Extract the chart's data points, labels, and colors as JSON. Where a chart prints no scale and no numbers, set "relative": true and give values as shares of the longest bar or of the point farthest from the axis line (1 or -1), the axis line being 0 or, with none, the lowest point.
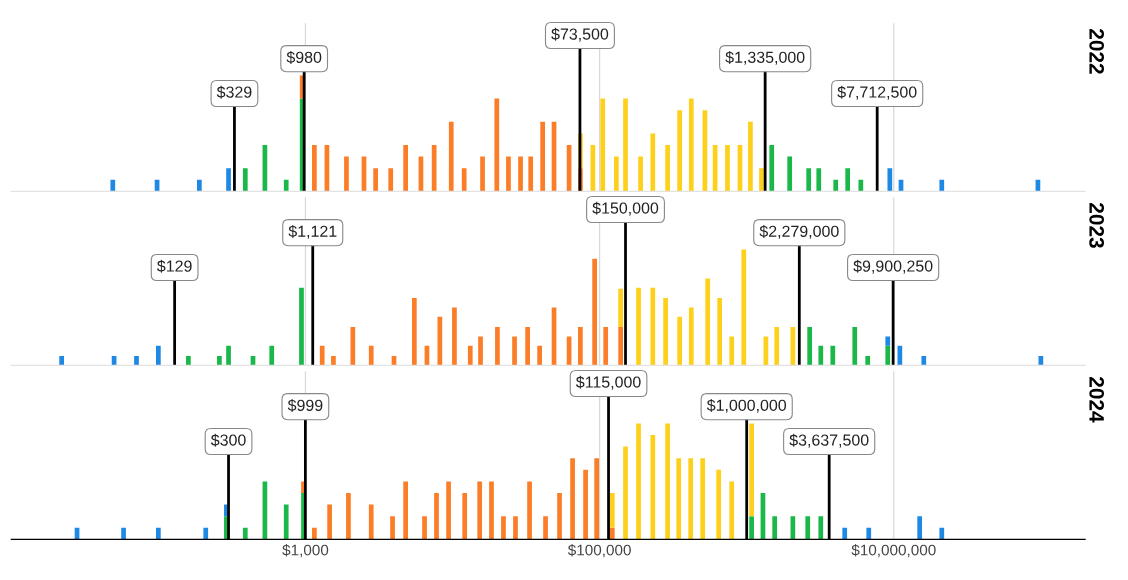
{
  "chart_data": [
    {
      "type": "bar",
      "title": "2022",
      "relative": true,
      "stacked": true,
      "log": "x",
      "grid": "x",
      "tick_labels": false,
      "xlim": [
        10,
        200000000
      ],
      "xticks": [
        {
          "value": 1000,
          "label": null
        },
        {
          "value": 100000,
          "label": null
        },
        {
          "value": 10000000,
          "label": null
        }
      ],
      "x": [
        49,
        98,
        190,
        300,
        390,
        530,
        740,
        950,
        1150,
        1400,
        1900,
        2500,
        3000,
        3800,
        4800,
        6100,
        7500,
        9800,
        12000,
        16000,
        20000,
        24000,
        29000,
        34000,
        41000,
        49000,
        62000,
        74000,
        90000,
        105000,
        130000,
        150000,
        190000,
        230000,
        290000,
        350000,
        420000,
        520000,
        610000,
        740000,
        900000,
        1060000,
        1260000,
        1480000,
        1960000,
        2640000,
        3090000,
        4030000,
        4860000,
        5970000,
        9400000,
        11200000,
        21200000,
        95500000
      ],
      "series": [
        {
          "color": "#19b849",
          "values": [
            null,
            null,
            null,
            null,
            0.2,
            0.4,
            0.1,
            0.8,
            null,
            null,
            null,
            null,
            null,
            null,
            null,
            null,
            null,
            null,
            null,
            null,
            null,
            null,
            null,
            null,
            null,
            null,
            null,
            null,
            null,
            null,
            null,
            null,
            null,
            null,
            null,
            null,
            null,
            null,
            null,
            null,
            null,
            null,
            null,
            0.4,
            0.3,
            0.2,
            0.2,
            0.1,
            0.2,
            0.1,
            null,
            null,
            null,
            null
          ]
        },
        {
          "color": "#fb7d28",
          "values": [
            null,
            null,
            null,
            null,
            null,
            null,
            null,
            0.2,
            0.4,
            0.4,
            0.3,
            0.3,
            0.2,
            0.2,
            0.4,
            0.3,
            0.4,
            0.6,
            0.2,
            0.3,
            0.8,
            0.3,
            0.3,
            0.3,
            0.6,
            0.6,
            0.4,
            0.2,
            null,
            null,
            null,
            null,
            null,
            null,
            null,
            null,
            null,
            null,
            null,
            null,
            null,
            null,
            null,
            null,
            null,
            null,
            null,
            null,
            null,
            null,
            null,
            null,
            null,
            null
          ]
        },
        {
          "color": "#fdd01c",
          "values": [
            null,
            null,
            null,
            null,
            null,
            null,
            null,
            null,
            null,
            null,
            null,
            null,
            null,
            null,
            null,
            null,
            null,
            null,
            null,
            null,
            null,
            null,
            null,
            null,
            null,
            null,
            null,
            0.3,
            0.4,
            0.8,
            0.3,
            0.8,
            0.3,
            0.5,
            0.4,
            0.7,
            0.8,
            0.7,
            0.4,
            0.4,
            0.4,
            0.6,
            0.2,
            null,
            null,
            null,
            null,
            null,
            null,
            null,
            null,
            null,
            null,
            null
          ]
        },
        {
          "color": "#1e88e5",
          "values": [
            0.1,
            0.1,
            0.1,
            0.2,
            null,
            null,
            null,
            null,
            null,
            null,
            null,
            null,
            null,
            null,
            null,
            null,
            null,
            null,
            null,
            null,
            null,
            null,
            null,
            null,
            null,
            null,
            null,
            null,
            null,
            null,
            null,
            null,
            null,
            null,
            null,
            null,
            null,
            null,
            null,
            null,
            null,
            null,
            null,
            null,
            null,
            null,
            null,
            null,
            null,
            null,
            0.2,
            0.1,
            0.1,
            0.1
          ]
        }
      ],
      "ref_lines": [
        {
          "axis": "x",
          "value": 329,
          "label": "$329",
          "color": "#000000"
        },
        {
          "axis": "x",
          "value": 980,
          "label": "$980",
          "color": "#000000"
        },
        {
          "axis": "x",
          "value": 73500,
          "label": "$73,500",
          "color": "#000000"
        },
        {
          "axis": "x",
          "value": 1335000,
          "label": "$1,335,000",
          "color": "#000000"
        },
        {
          "axis": "x",
          "value": 7712500,
          "label": "$7,712,500",
          "color": "#000000"
        }
      ]
    },
    {
      "type": "bar",
      "title": "2023",
      "relative": true,
      "stacked": true,
      "log": "x",
      "grid": "x",
      "tick_labels": false,
      "xlim": [
        10,
        200000000
      ],
      "xticks": [
        {
          "value": 1000,
          "label": null
        },
        {
          "value": 100000,
          "label": null
        },
        {
          "value": 10000000,
          "label": null
        }
      ],
      "x": [
        22,
        50,
        71,
        100,
        160,
        260,
        300,
        440,
        590,
        940,
        1300,
        1550,
        2100,
        2800,
        4000,
        5500,
        6700,
        8200,
        10300,
        13200,
        15500,
        20200,
        26400,
        32400,
        39100,
        49000,
        62000,
        74000,
        92500,
        110000,
        139000,
        184000,
        230000,
        281000,
        350000,
        420000,
        543000,
        655000,
        791000,
        955000,
        1350000,
        1600000,
        2060000,
        2680000,
        3190000,
        3850000,
        5430000,
        6650000,
        9100000,
        11000000,
        16000000,
        100000000
      ],
      "series": [
        {
          "color": "#19b849",
          "values": [
            null,
            null,
            null,
            null,
            0.08,
            0.08,
            0.17,
            0.08,
            0.17,
            0.67,
            null,
            null,
            null,
            null,
            null,
            null,
            null,
            null,
            null,
            null,
            null,
            null,
            null,
            null,
            null,
            null,
            null,
            null,
            null,
            null,
            null,
            null,
            null,
            null,
            null,
            null,
            null,
            null,
            null,
            null,
            null,
            null,
            null,
            0.33,
            0.17,
            0.17,
            0.33,
            0.08,
            0.17,
            null,
            null,
            null
          ]
        },
        {
          "color": "#fb7d28",
          "values": [
            null,
            null,
            null,
            null,
            null,
            null,
            null,
            null,
            null,
            null,
            0.17,
            0.08,
            0.33,
            0.17,
            0.08,
            0.58,
            0.17,
            0.42,
            0.5,
            0.17,
            0.25,
            0.33,
            0.25,
            0.33,
            0.17,
            0.5,
            0.25,
            0.33,
            0.92,
            0.33,
            0.33,
            null,
            null,
            null,
            null,
            null,
            null,
            null,
            null,
            null,
            null,
            null,
            null,
            null,
            null,
            null,
            null,
            null,
            null,
            null,
            null,
            null
          ]
        },
        {
          "color": "#fdd01c",
          "values": [
            null,
            null,
            null,
            null,
            null,
            null,
            null,
            null,
            null,
            null,
            null,
            null,
            null,
            null,
            null,
            null,
            null,
            null,
            null,
            null,
            null,
            null,
            null,
            null,
            null,
            null,
            null,
            null,
            null,
            null,
            0.33,
            0.67,
            0.67,
            0.58,
            0.42,
            0.5,
            0.75,
            0.58,
            0.25,
            1,
            0.25,
            0.33,
            0.33,
            null,
            null,
            null,
            null,
            null,
            null,
            null,
            null,
            null
          ]
        },
        {
          "color": "#1e88e5",
          "values": [
            0.08,
            0.08,
            0.08,
            0.17,
            null,
            null,
            null,
            null,
            null,
            null,
            null,
            null,
            null,
            null,
            null,
            null,
            null,
            null,
            null,
            null,
            null,
            null,
            null,
            null,
            null,
            null,
            null,
            null,
            null,
            null,
            null,
            null,
            null,
            null,
            null,
            null,
            null,
            null,
            null,
            null,
            null,
            null,
            null,
            null,
            null,
            null,
            null,
            null,
            0.08,
            0.17,
            0.08,
            0.08
          ]
        }
      ],
      "ref_lines": [
        {
          "axis": "x",
          "value": 129,
          "label": "$129",
          "color": "#000000"
        },
        {
          "axis": "x",
          "value": 1121,
          "label": "$1,121",
          "color": "#000000"
        },
        {
          "axis": "x",
          "value": 150000,
          "label": "$150,000",
          "color": "#000000"
        },
        {
          "axis": "x",
          "value": 2279000,
          "label": "$2,279,000",
          "color": "#000000"
        },
        {
          "axis": "x",
          "value": 9900250,
          "label": "$9,900,250",
          "color": "#000000"
        }
      ]
    },
    {
      "type": "bar",
      "title": "2024",
      "relative": true,
      "stacked": true,
      "log": "x",
      "grid": "x",
      "tick_labels": "x",
      "xlim": [
        10,
        200000000
      ],
      "xticks": [
        {
          "value": 1000,
          "label": "$1,000"
        },
        {
          "value": 100000,
          "label": "$100,000"
        },
        {
          "value": 10000000,
          "label": "$10,000,000"
        }
      ],
      "x": [
        28,
        58,
        100,
        210,
        290,
        390,
        530,
        740,
        970,
        1150,
        1460,
        1960,
        2800,
        3910,
        4800,
        6450,
        7780,
        9400,
        12100,
        15300,
        18400,
        22200,
        26800,
        33400,
        42900,
        53400,
        65500,
        80300,
        95500,
        122000,
        150000,
        184000,
        230000,
        290000,
        345000,
        416000,
        502000,
        645000,
        791000,
        1080000,
        1290000,
        1550000,
        2060000,
        2600000,
        3190000,
        4640000,
        6760000,
        15000000,
        21200000
      ],
      "series": [
        {
          "color": "#19b849",
          "values": [
            null,
            null,
            null,
            null,
            0.2,
            0.1,
            0.5,
            0.3,
            0.4,
            null,
            null,
            null,
            null,
            null,
            null,
            null,
            null,
            null,
            null,
            null,
            null,
            null,
            null,
            null,
            null,
            null,
            null,
            null,
            null,
            null,
            null,
            null,
            null,
            null,
            null,
            null,
            null,
            null,
            null,
            0.2,
            0.4,
            0.2,
            0.2,
            0.2,
            0.2,
            null,
            null,
            null,
            null
          ]
        },
        {
          "color": "#fb7d28",
          "values": [
            null,
            null,
            null,
            null,
            null,
            null,
            null,
            null,
            0.1,
            0.1,
            0.3,
            0.4,
            0.3,
            0.2,
            0.5,
            0.2,
            0.4,
            0.5,
            0.4,
            0.5,
            0.5,
            0.2,
            0.2,
            0.5,
            0.2,
            0.4,
            0.7,
            0.6,
            0.7,
            0.1,
            null,
            null,
            null,
            null,
            null,
            null,
            null,
            null,
            null,
            null,
            null,
            null,
            null,
            null,
            null,
            null,
            null,
            null,
            null
          ]
        },
        {
          "color": "#fdd01c",
          "values": [
            null,
            null,
            null,
            null,
            null,
            null,
            null,
            null,
            null,
            null,
            null,
            null,
            null,
            null,
            null,
            null,
            null,
            null,
            null,
            null,
            null,
            null,
            null,
            null,
            null,
            null,
            null,
            null,
            null,
            0.3,
            0.8,
            1,
            0.9,
            1,
            0.7,
            0.7,
            0.7,
            0.6,
            0.5,
            0.8,
            null,
            null,
            null,
            null,
            null,
            null,
            null,
            null,
            null
          ]
        },
        {
          "color": "#1e88e5",
          "values": [
            0.1,
            0.1,
            0.1,
            0.1,
            0.1,
            null,
            null,
            null,
            null,
            null,
            null,
            null,
            null,
            null,
            null,
            null,
            null,
            null,
            null,
            null,
            null,
            null,
            null,
            null,
            null,
            null,
            null,
            null,
            null,
            null,
            null,
            null,
            null,
            null,
            null,
            null,
            null,
            null,
            null,
            null,
            null,
            null,
            null,
            null,
            null,
            0.1,
            0.1,
            0.2,
            0.1
          ]
        }
      ],
      "ref_lines": [
        {
          "axis": "x",
          "value": 300,
          "label": "$300",
          "color": "#000000"
        },
        {
          "axis": "x",
          "value": 999,
          "label": "$999",
          "color": "#000000"
        },
        {
          "axis": "x",
          "value": 115000,
          "label": "$115,000",
          "color": "#000000"
        },
        {
          "axis": "x",
          "value": 1000000,
          "label": "$1,000,000",
          "color": "#000000"
        },
        {
          "axis": "x",
          "value": 3637500,
          "label": "$3,637,500",
          "color": "#000000"
        }
      ]
    }
  ]
}
